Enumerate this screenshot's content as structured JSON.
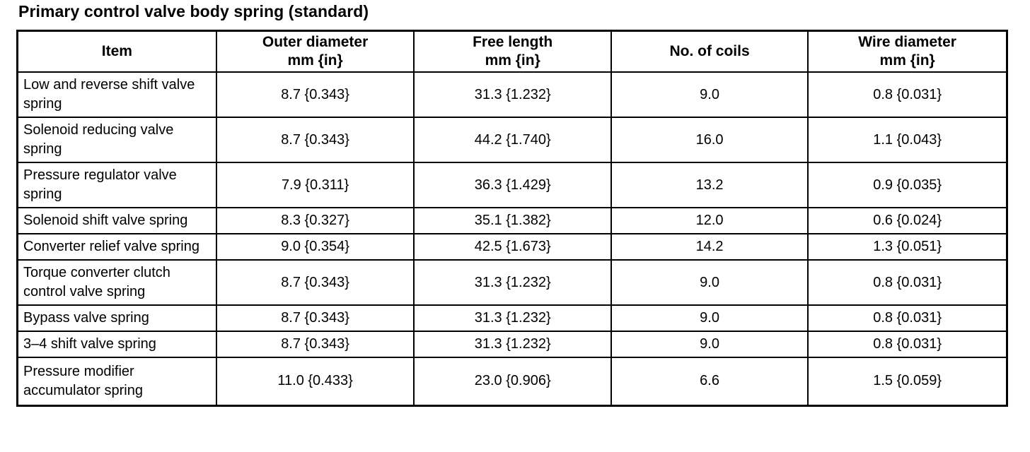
{
  "title": "Primary control valve body spring (standard)",
  "colors": {
    "text": "#000000",
    "background": "#ffffff",
    "border": "#000000"
  },
  "table": {
    "headers": [
      {
        "label": "Item",
        "sub": ""
      },
      {
        "label": "Outer diameter",
        "sub": "mm {in}"
      },
      {
        "label": "Free length",
        "sub": "mm {in}"
      },
      {
        "label": "No. of coils",
        "sub": ""
      },
      {
        "label": "Wire diameter",
        "sub": "mm {in}"
      }
    ],
    "rows": [
      {
        "item": "Low and reverse shift valve spring",
        "outer_diameter": "8.7 {0.343}",
        "free_length": "31.3 {1.232}",
        "no_of_coils": "9.0",
        "wire_diameter": "0.8 {0.031}"
      },
      {
        "item": "Solenoid reducing valve spring",
        "outer_diameter": "8.7 {0.343}",
        "free_length": "44.2 {1.740}",
        "no_of_coils": "16.0",
        "wire_diameter": "1.1 {0.043}"
      },
      {
        "item": "Pressure regulator valve spring",
        "outer_diameter": "7.9 {0.311}",
        "free_length": "36.3 {1.429}",
        "no_of_coils": "13.2",
        "wire_diameter": "0.9 {0.035}"
      },
      {
        "item": "Solenoid shift valve spring",
        "outer_diameter": "8.3 {0.327}",
        "free_length": "35.1 {1.382}",
        "no_of_coils": "12.0",
        "wire_diameter": "0.6 {0.024}"
      },
      {
        "item": "Converter relief valve spring",
        "outer_diameter": "9.0 {0.354}",
        "free_length": "42.5 {1.673}",
        "no_of_coils": "14.2",
        "wire_diameter": "1.3 {0.051}"
      },
      {
        "item": "Torque converter clutch control valve spring",
        "outer_diameter": "8.7 {0.343}",
        "free_length": "31.3 {1.232}",
        "no_of_coils": "9.0",
        "wire_diameter": "0.8 {0.031}"
      },
      {
        "item": "Bypass valve spring",
        "outer_diameter": "8.7 {0.343}",
        "free_length": "31.3 {1.232}",
        "no_of_coils": "9.0",
        "wire_diameter": "0.8 {0.031}"
      },
      {
        "item": "3–4 shift valve spring",
        "outer_diameter": "8.7 {0.343}",
        "free_length": "31.3 {1.232}",
        "no_of_coils": "9.0",
        "wire_diameter": "0.8 {0.031}"
      },
      {
        "item": "Pressure modifier accumulator spring",
        "outer_diameter": "11.0 {0.433}",
        "free_length": "23.0 {0.906}",
        "no_of_coils": "6.6",
        "wire_diameter": "1.5 {0.059}"
      }
    ]
  }
}
